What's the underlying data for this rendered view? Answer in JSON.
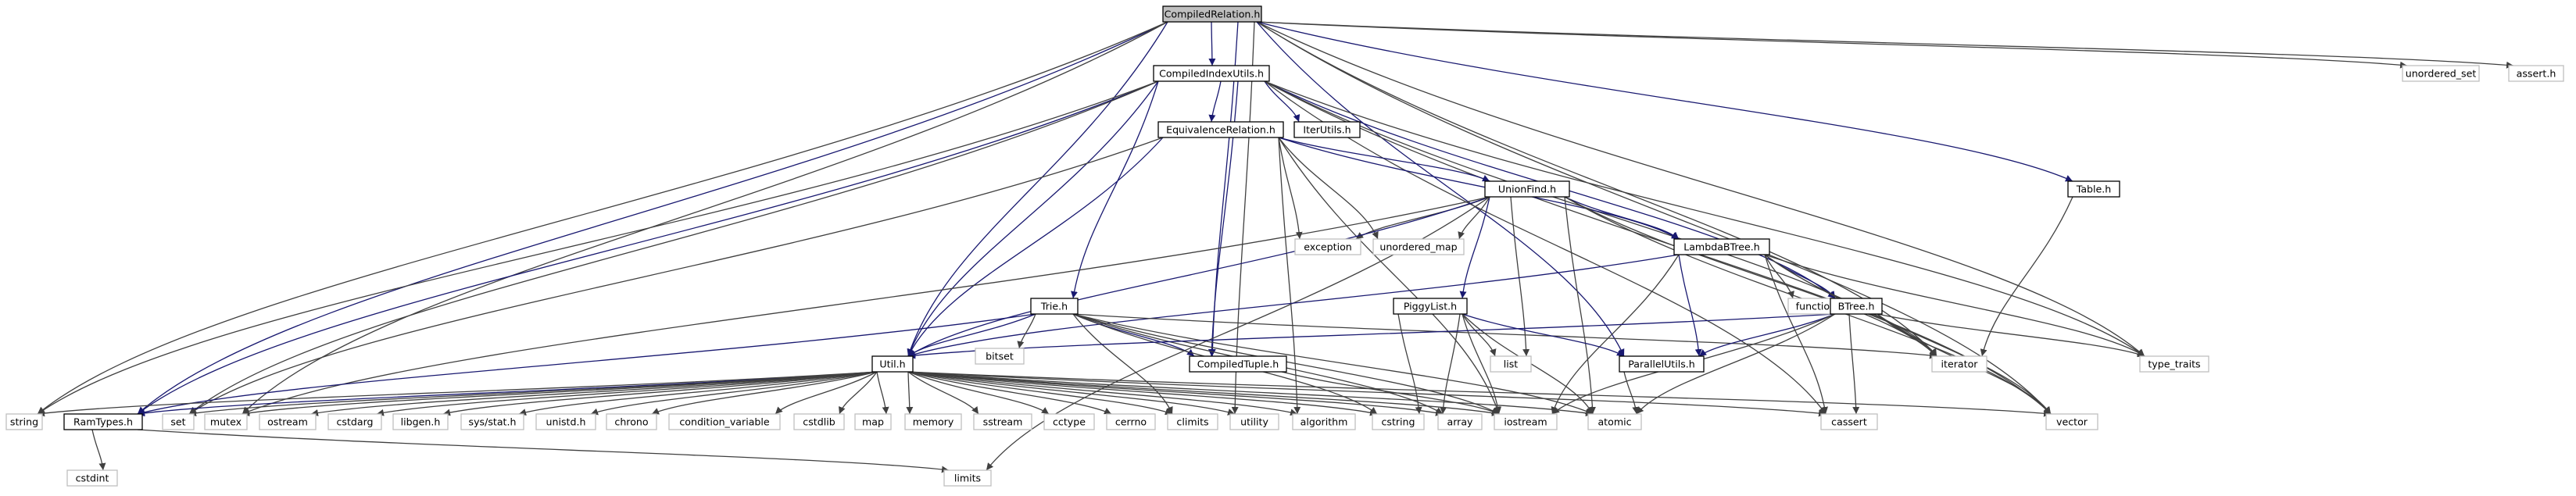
{
  "nodes": [
    {
      "id": "compiled_relation",
      "label": "CompiledRelation.h",
      "kind": "root"
    },
    {
      "id": "compiled_index_utils",
      "label": "CompiledIndexUtils.h",
      "kind": "doc"
    },
    {
      "id": "unordered_set",
      "label": "unordered_set",
      "kind": "std"
    },
    {
      "id": "assert_h",
      "label": "assert.h",
      "kind": "std"
    },
    {
      "id": "equivalence_relation",
      "label": "EquivalenceRelation.h",
      "kind": "doc"
    },
    {
      "id": "iter_utils",
      "label": "IterUtils.h",
      "kind": "doc"
    },
    {
      "id": "union_find",
      "label": "UnionFind.h",
      "kind": "doc"
    },
    {
      "id": "table_h",
      "label": "Table.h",
      "kind": "doc"
    },
    {
      "id": "exception",
      "label": "exception",
      "kind": "std"
    },
    {
      "id": "unordered_map",
      "label": "unordered_map",
      "kind": "std"
    },
    {
      "id": "lambda_btree",
      "label": "LambdaBTree.h",
      "kind": "doc"
    },
    {
      "id": "trie_h",
      "label": "Trie.h",
      "kind": "doc"
    },
    {
      "id": "piggylist",
      "label": "PiggyList.h",
      "kind": "doc"
    },
    {
      "id": "functional",
      "label": "functional",
      "kind": "std"
    },
    {
      "id": "btree_h",
      "label": "BTree.h",
      "kind": "doc"
    },
    {
      "id": "bitset",
      "label": "bitset",
      "kind": "std"
    },
    {
      "id": "compiled_tuple",
      "label": "CompiledTuple.h",
      "kind": "doc"
    },
    {
      "id": "list",
      "label": "list",
      "kind": "std"
    },
    {
      "id": "parallel_utils",
      "label": "ParallelUtils.h",
      "kind": "doc"
    },
    {
      "id": "iterator",
      "label": "iterator",
      "kind": "std"
    },
    {
      "id": "type_traits",
      "label": "type_traits",
      "kind": "std"
    },
    {
      "id": "util_h",
      "label": "Util.h",
      "kind": "doc"
    },
    {
      "id": "string",
      "label": "string",
      "kind": "std"
    },
    {
      "id": "ram_types",
      "label": "RamTypes.h",
      "kind": "doc"
    },
    {
      "id": "set",
      "label": "set",
      "kind": "std"
    },
    {
      "id": "mutex",
      "label": "mutex",
      "kind": "std"
    },
    {
      "id": "ostream",
      "label": "ostream",
      "kind": "std"
    },
    {
      "id": "cstdarg",
      "label": "cstdarg",
      "kind": "std"
    },
    {
      "id": "libgen",
      "label": "libgen.h",
      "kind": "std"
    },
    {
      "id": "sys_stat",
      "label": "sys/stat.h",
      "kind": "std"
    },
    {
      "id": "unistd",
      "label": "unistd.h",
      "kind": "std"
    },
    {
      "id": "chrono",
      "label": "chrono",
      "kind": "std"
    },
    {
      "id": "condition_variable",
      "label": "condition_variable",
      "kind": "std"
    },
    {
      "id": "cstdlib",
      "label": "cstdlib",
      "kind": "std"
    },
    {
      "id": "map",
      "label": "map",
      "kind": "std"
    },
    {
      "id": "memory",
      "label": "memory",
      "kind": "std"
    },
    {
      "id": "sstream",
      "label": "sstream",
      "kind": "std"
    },
    {
      "id": "cctype",
      "label": "cctype",
      "kind": "std"
    },
    {
      "id": "cerrno",
      "label": "cerrno",
      "kind": "std"
    },
    {
      "id": "climits",
      "label": "climits",
      "kind": "std"
    },
    {
      "id": "utility",
      "label": "utility",
      "kind": "std"
    },
    {
      "id": "algorithm",
      "label": "algorithm",
      "kind": "std"
    },
    {
      "id": "cstring",
      "label": "cstring",
      "kind": "std"
    },
    {
      "id": "array",
      "label": "array",
      "kind": "std"
    },
    {
      "id": "iostream",
      "label": "iostream",
      "kind": "std"
    },
    {
      "id": "atomic",
      "label": "atomic",
      "kind": "std"
    },
    {
      "id": "cassert",
      "label": "cassert",
      "kind": "std"
    },
    {
      "id": "vector",
      "label": "vector",
      "kind": "std"
    },
    {
      "id": "cstdint",
      "label": "cstdint",
      "kind": "std"
    },
    {
      "id": "limits",
      "label": "limits",
      "kind": "std"
    }
  ],
  "edges": [
    {
      "from": "compiled_relation",
      "to": "compiled_index_utils"
    },
    {
      "from": "compiled_relation",
      "to": "unordered_set"
    },
    {
      "from": "compiled_relation",
      "to": "assert_h"
    },
    {
      "from": "compiled_relation",
      "to": "table_h"
    },
    {
      "from": "compiled_relation",
      "to": "iterator"
    },
    {
      "from": "compiled_relation",
      "to": "type_traits"
    },
    {
      "from": "compiled_relation",
      "to": "vector"
    },
    {
      "from": "compiled_relation",
      "to": "parallel_utils"
    },
    {
      "from": "compiled_relation",
      "to": "compiled_tuple"
    },
    {
      "from": "compiled_relation",
      "to": "util_h"
    },
    {
      "from": "compiled_relation",
      "to": "ram_types"
    },
    {
      "from": "compiled_relation",
      "to": "string"
    },
    {
      "from": "compiled_relation",
      "to": "mutex"
    },
    {
      "from": "compiled_relation",
      "to": "utility"
    },
    {
      "from": "compiled_index_utils",
      "to": "equivalence_relation"
    },
    {
      "from": "compiled_index_utils",
      "to": "iter_utils"
    },
    {
      "from": "compiled_index_utils",
      "to": "trie_h"
    },
    {
      "from": "compiled_index_utils",
      "to": "compiled_tuple"
    },
    {
      "from": "compiled_index_utils",
      "to": "util_h"
    },
    {
      "from": "compiled_index_utils",
      "to": "ram_types"
    },
    {
      "from": "compiled_index_utils",
      "to": "string"
    },
    {
      "from": "compiled_index_utils",
      "to": "set"
    },
    {
      "from": "compiled_index_utils",
      "to": "btree_h"
    },
    {
      "from": "compiled_index_utils",
      "to": "iterator"
    },
    {
      "from": "compiled_index_utils",
      "to": "type_traits"
    },
    {
      "from": "compiled_index_utils",
      "to": "cassert"
    },
    {
      "from": "compiled_index_utils",
      "to": "vector"
    },
    {
      "from": "equivalence_relation",
      "to": "union_find"
    },
    {
      "from": "equivalence_relation",
      "to": "exception"
    },
    {
      "from": "equivalence_relation",
      "to": "unordered_map"
    },
    {
      "from": "equivalence_relation",
      "to": "lambda_btree"
    },
    {
      "from": "equivalence_relation",
      "to": "util_h"
    },
    {
      "from": "equivalence_relation",
      "to": "set"
    },
    {
      "from": "equivalence_relation",
      "to": "algorithm"
    },
    {
      "from": "equivalence_relation",
      "to": "iostream"
    },
    {
      "from": "union_find",
      "to": "lambda_btree"
    },
    {
      "from": "union_find",
      "to": "piggylist"
    },
    {
      "from": "union_find",
      "to": "exception"
    },
    {
      "from": "union_find",
      "to": "unordered_map"
    },
    {
      "from": "union_find",
      "to": "util_h"
    },
    {
      "from": "union_find",
      "to": "mutex"
    },
    {
      "from": "union_find",
      "to": "list"
    },
    {
      "from": "union_find",
      "to": "atomic"
    },
    {
      "from": "union_find",
      "to": "iterator"
    },
    {
      "from": "union_find",
      "to": "vector"
    },
    {
      "from": "union_find",
      "to": "limits"
    },
    {
      "from": "table_h",
      "to": "iterator"
    },
    {
      "from": "lambda_btree",
      "to": "btree_h"
    },
    {
      "from": "lambda_btree",
      "to": "functional"
    },
    {
      "from": "lambda_btree",
      "to": "parallel_utils"
    },
    {
      "from": "lambda_btree",
      "to": "util_h"
    },
    {
      "from": "lambda_btree",
      "to": "iterator"
    },
    {
      "from": "lambda_btree",
      "to": "type_traits"
    },
    {
      "from": "lambda_btree",
      "to": "vector"
    },
    {
      "from": "lambda_btree",
      "to": "cassert"
    },
    {
      "from": "lambda_btree",
      "to": "iostream"
    },
    {
      "from": "trie_h",
      "to": "compiled_tuple"
    },
    {
      "from": "trie_h",
      "to": "util_h"
    },
    {
      "from": "trie_h",
      "to": "bitset"
    },
    {
      "from": "trie_h",
      "to": "ram_types"
    },
    {
      "from": "trie_h",
      "to": "iterator"
    },
    {
      "from": "trie_h",
      "to": "atomic"
    },
    {
      "from": "trie_h",
      "to": "array"
    },
    {
      "from": "trie_h",
      "to": "cstring"
    },
    {
      "from": "trie_h",
      "to": "iostream"
    },
    {
      "from": "trie_h",
      "to": "climits"
    },
    {
      "from": "piggylist",
      "to": "parallel_utils"
    },
    {
      "from": "piggylist",
      "to": "list"
    },
    {
      "from": "piggylist",
      "to": "cstring"
    },
    {
      "from": "piggylist",
      "to": "iostream"
    },
    {
      "from": "piggylist",
      "to": "atomic"
    },
    {
      "from": "piggylist",
      "to": "array"
    },
    {
      "from": "btree_h",
      "to": "parallel_utils"
    },
    {
      "from": "btree_h",
      "to": "util_h"
    },
    {
      "from": "btree_h",
      "to": "iterator"
    },
    {
      "from": "btree_h",
      "to": "type_traits"
    },
    {
      "from": "btree_h",
      "to": "vector"
    },
    {
      "from": "btree_h",
      "to": "cassert"
    },
    {
      "from": "btree_h",
      "to": "atomic"
    },
    {
      "from": "btree_h",
      "to": "iostream"
    },
    {
      "from": "compiled_tuple",
      "to": "iostream"
    },
    {
      "from": "parallel_utils",
      "to": "atomic"
    },
    {
      "from": "util_h",
      "to": "ram_types"
    },
    {
      "from": "util_h",
      "to": "string"
    },
    {
      "from": "util_h",
      "to": "set"
    },
    {
      "from": "util_h",
      "to": "mutex"
    },
    {
      "from": "util_h",
      "to": "ostream"
    },
    {
      "from": "util_h",
      "to": "cstdarg"
    },
    {
      "from": "util_h",
      "to": "libgen"
    },
    {
      "from": "util_h",
      "to": "sys_stat"
    },
    {
      "from": "util_h",
      "to": "unistd"
    },
    {
      "from": "util_h",
      "to": "chrono"
    },
    {
      "from": "util_h",
      "to": "condition_variable"
    },
    {
      "from": "util_h",
      "to": "cstdlib"
    },
    {
      "from": "util_h",
      "to": "map"
    },
    {
      "from": "util_h",
      "to": "memory"
    },
    {
      "from": "util_h",
      "to": "sstream"
    },
    {
      "from": "util_h",
      "to": "cctype"
    },
    {
      "from": "util_h",
      "to": "cerrno"
    },
    {
      "from": "util_h",
      "to": "climits"
    },
    {
      "from": "util_h",
      "to": "utility"
    },
    {
      "from": "util_h",
      "to": "algorithm"
    },
    {
      "from": "util_h",
      "to": "cstring"
    },
    {
      "from": "util_h",
      "to": "array"
    },
    {
      "from": "util_h",
      "to": "iostream"
    },
    {
      "from": "util_h",
      "to": "atomic"
    },
    {
      "from": "util_h",
      "to": "cassert"
    },
    {
      "from": "util_h",
      "to": "vector"
    },
    {
      "from": "ram_types",
      "to": "cstdint"
    },
    {
      "from": "ram_types",
      "to": "limits"
    }
  ]
}
